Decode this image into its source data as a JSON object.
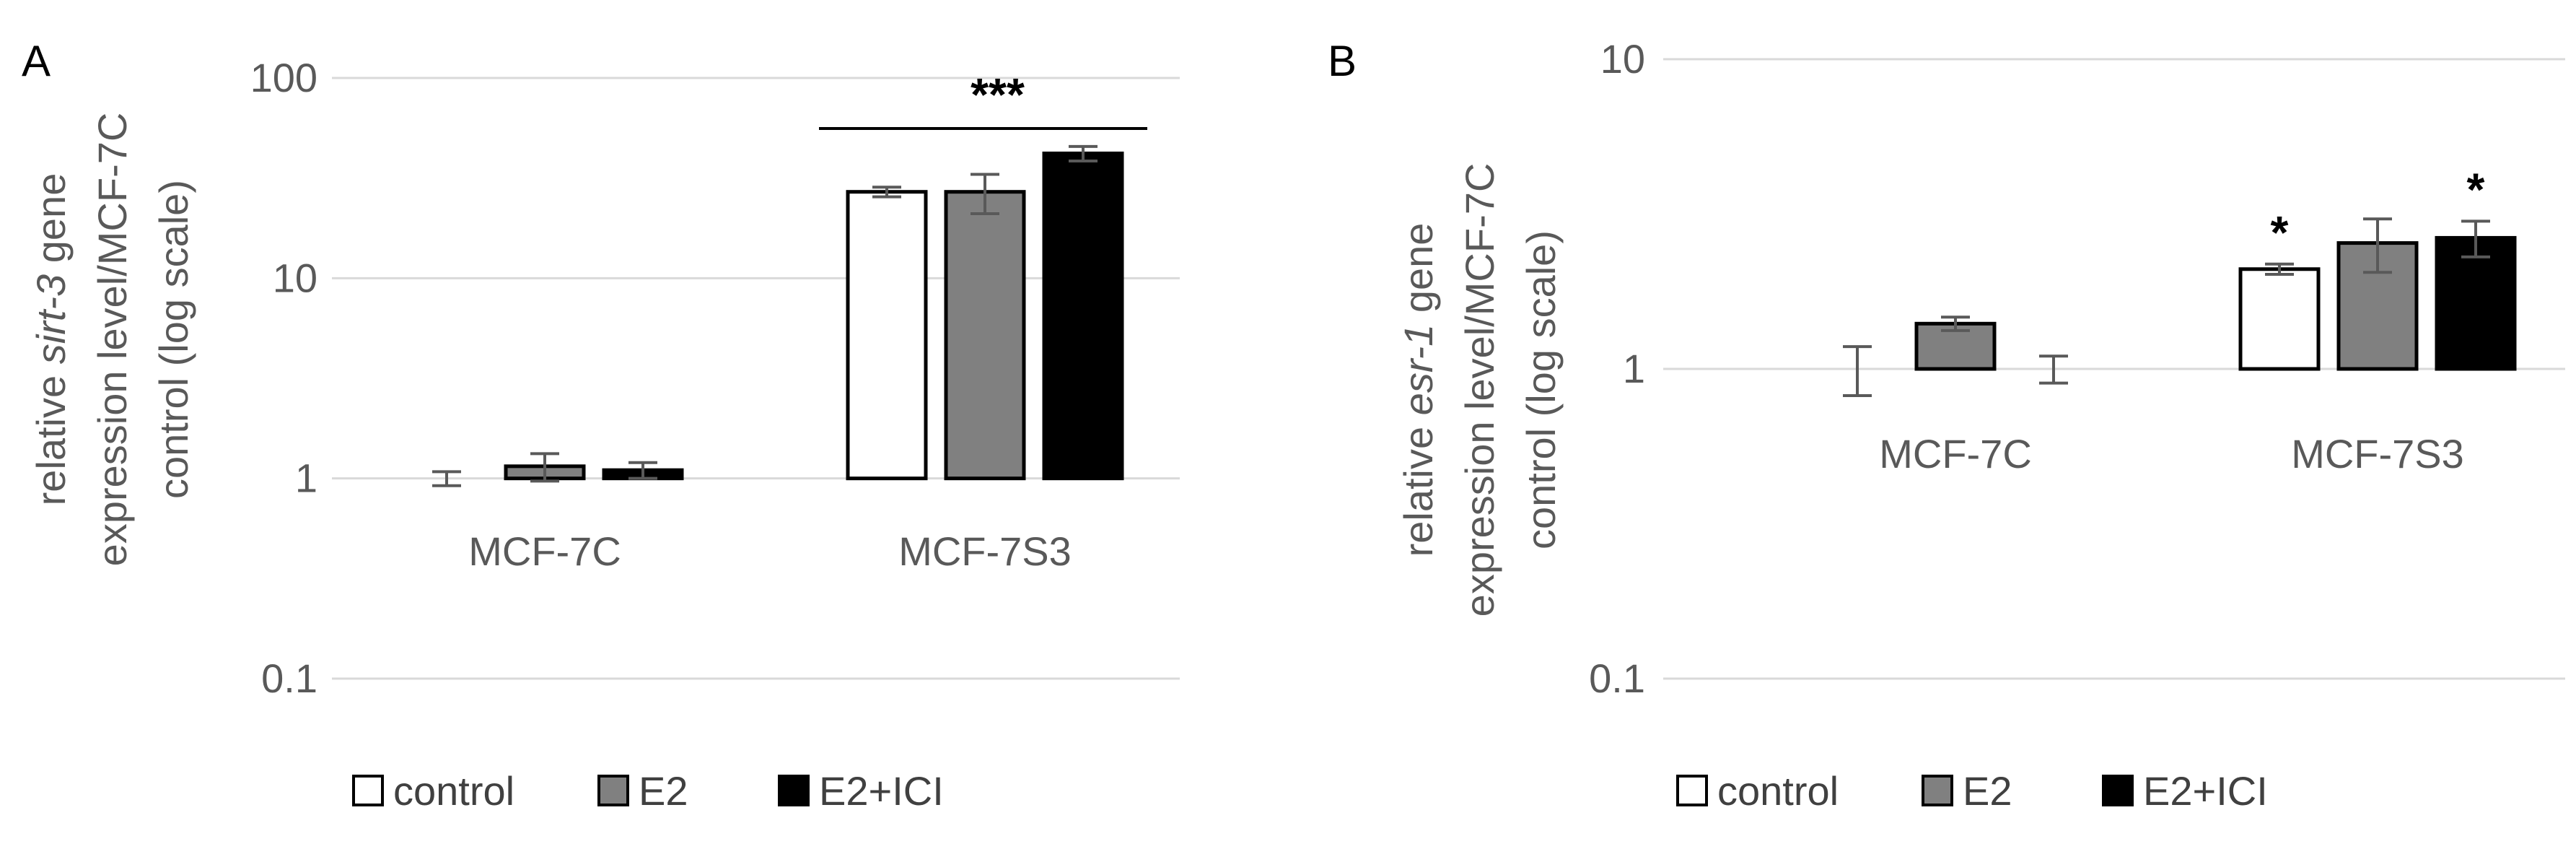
{
  "chart_data": [
    {
      "panel": "A",
      "type": "bar",
      "yscale": "log",
      "ylim": [
        0.1,
        100
      ],
      "yticks": [
        "0.1",
        "1",
        "10",
        "100"
      ],
      "ylabel_parts": [
        "relative ",
        "sirt-3",
        " gene",
        "expression level/MCF-7C",
        "control (log scale)"
      ],
      "categories": [
        "MCF-7C",
        "MCF-7S3"
      ],
      "series": [
        {
          "name": "control",
          "color": "#ffffff",
          "values": [
            1.0,
            27.0
          ],
          "err": [
            0.08,
            1.5
          ]
        },
        {
          "name": "E2",
          "color": "#808080",
          "values": [
            1.15,
            27.0
          ],
          "err": [
            0.18,
            6.0
          ]
        },
        {
          "name": "E2+ICI",
          "color": "#000000",
          "values": [
            1.1,
            42.0
          ],
          "err": [
            0.1,
            3.5
          ]
        }
      ],
      "annotations": [
        {
          "label": "***",
          "category": "MCF-7S3",
          "bracket": true
        }
      ]
    },
    {
      "panel": "B",
      "type": "bar",
      "yscale": "log",
      "ylim": [
        0.1,
        10
      ],
      "yticks": [
        "0.1",
        "1",
        "10"
      ],
      "ylabel_parts": [
        "relative ",
        "esr-1",
        "  gene",
        "expression level/MCF-7C",
        "control (log scale)"
      ],
      "categories": [
        "MCF-7C",
        "MCF-7S3"
      ],
      "series": [
        {
          "name": "control",
          "color": "#ffffff",
          "values": [
            1.0,
            2.1
          ],
          "err": [
            0.18,
            0.08
          ]
        },
        {
          "name": "E2",
          "color": "#808080",
          "values": [
            1.4,
            2.55
          ],
          "err": [
            0.07,
            0.5
          ]
        },
        {
          "name": "E2+ICI",
          "color": "#000000",
          "values": [
            1.0,
            2.65
          ],
          "err": [
            0.1,
            0.35
          ]
        }
      ],
      "annotations": [
        {
          "label": "*",
          "category": "MCF-7S3",
          "series": "control"
        },
        {
          "label": "*",
          "category": "MCF-7S3",
          "series": "E2+ICI"
        }
      ]
    }
  ]
}
